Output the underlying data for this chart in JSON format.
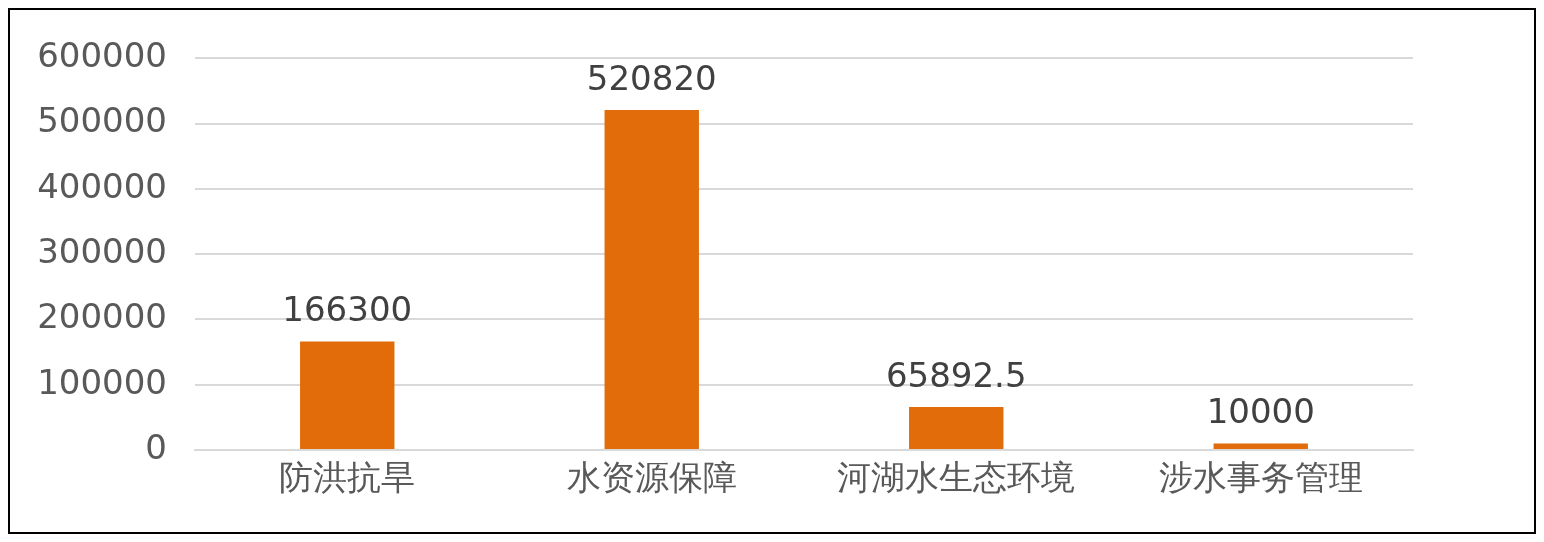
{
  "chart_data": {
    "type": "bar",
    "categories": [
      "防洪抗旱",
      "水资源保障",
      "河湖水生态环境",
      "涉水事务管理"
    ],
    "values": [
      166300,
      520820,
      65892.5,
      10000
    ],
    "color": "#e36c0a",
    "ylim": [
      0,
      600000
    ],
    "yticks": [
      0,
      100000,
      200000,
      300000,
      400000,
      500000,
      600000
    ],
    "grid": "y",
    "data_labels": true
  }
}
